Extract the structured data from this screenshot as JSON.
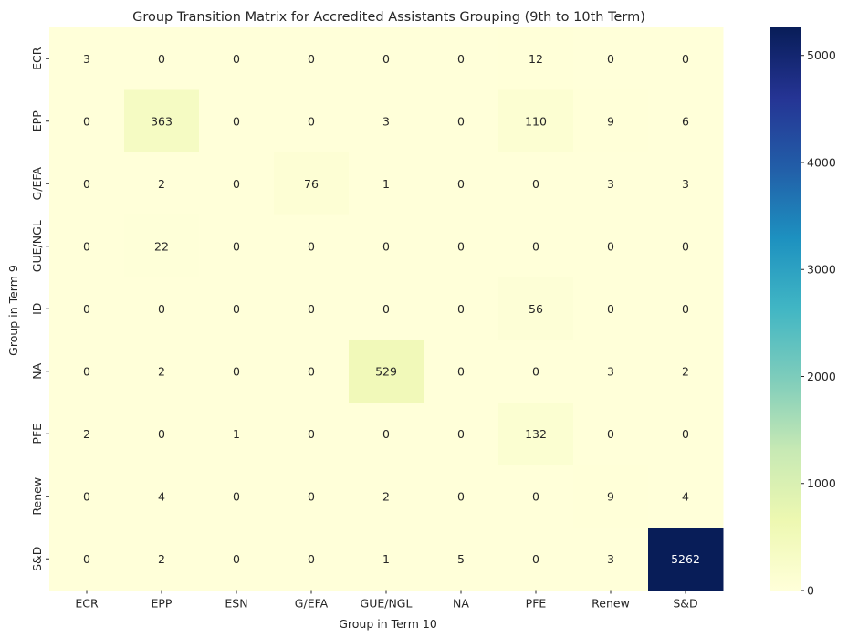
{
  "chart_data": {
    "type": "heatmap",
    "title": "Group Transition Matrix for Accredited Assistants Grouping (9th to 10th Term)",
    "xlabel": "Group in Term 10",
    "ylabel": "Group in Term 9",
    "x_categories": [
      "ECR",
      "EPP",
      "ESN",
      "G/EFA",
      "GUE/NGL",
      "NA",
      "PFE",
      "Renew",
      "S&D"
    ],
    "y_categories": [
      "ECR",
      "EPP",
      "G/EFA",
      "GUE/NGL",
      "ID",
      "NA",
      "PFE",
      "Renew",
      "S&D"
    ],
    "values": [
      [
        3,
        0,
        0,
        0,
        0,
        0,
        12,
        0,
        0
      ],
      [
        0,
        363,
        0,
        0,
        3,
        0,
        110,
        9,
        6
      ],
      [
        0,
        2,
        0,
        76,
        1,
        0,
        0,
        3,
        3
      ],
      [
        0,
        22,
        0,
        0,
        0,
        0,
        0,
        0,
        0
      ],
      [
        0,
        0,
        0,
        0,
        0,
        0,
        56,
        0,
        0
      ],
      [
        0,
        2,
        0,
        0,
        529,
        0,
        0,
        3,
        2
      ],
      [
        2,
        0,
        1,
        0,
        0,
        0,
        132,
        0,
        0
      ],
      [
        0,
        4,
        0,
        0,
        2,
        0,
        0,
        9,
        4
      ],
      [
        0,
        2,
        0,
        0,
        1,
        5,
        0,
        3,
        5262
      ]
    ],
    "colormap": "YlGnBu",
    "colorbar": {
      "min": 0,
      "max": 5262,
      "ticks": [
        0,
        1000,
        2000,
        3000,
        4000,
        5000
      ]
    }
  }
}
